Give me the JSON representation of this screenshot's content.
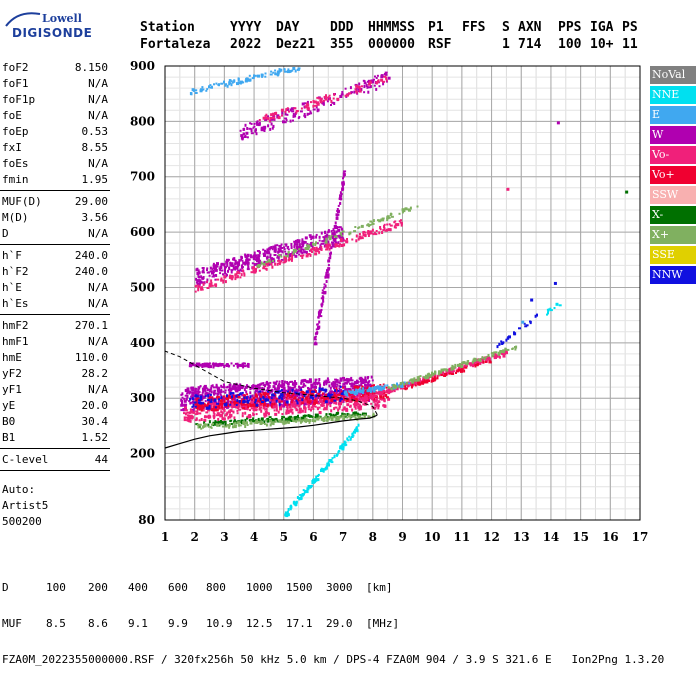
{
  "header": {
    "logo_top": "Lowell",
    "logo_bottom": "DIGISONDE",
    "line1": [
      "Station",
      "YYYY",
      "DAY",
      "DDD",
      "HHMMSS",
      "P1",
      "FFS",
      "S",
      "AXN",
      "PPS",
      "IGA",
      "PS"
    ],
    "line2": [
      "Fortaleza",
      "2022",
      "Dez21",
      "355",
      "000000",
      "RSF",
      "1",
      "714",
      "100",
      "10+",
      "11"
    ]
  },
  "params_groups": [
    [
      [
        "foF2",
        "8.150"
      ],
      [
        "foF1",
        "N/A"
      ],
      [
        "foF1p",
        "N/A"
      ],
      [
        "foE",
        "N/A"
      ],
      [
        "foEp",
        "0.53"
      ],
      [
        "fxI",
        "8.55"
      ],
      [
        "foEs",
        "N/A"
      ],
      [
        "fmin",
        "1.95"
      ]
    ],
    [
      [
        "MUF(D)",
        "29.00"
      ],
      [
        "M(D)",
        "3.56"
      ],
      [
        "D",
        "N/A"
      ]
    ],
    [
      [
        "h`F",
        "240.0"
      ],
      [
        "h`F2",
        "240.0"
      ],
      [
        "h`E",
        "N/A"
      ],
      [
        "h`Es",
        "N/A"
      ]
    ],
    [
      [
        "hmF2",
        "270.1"
      ],
      [
        "hmF1",
        "N/A"
      ],
      [
        "hmE",
        "110.0"
      ],
      [
        "yF2",
        "28.2"
      ],
      [
        "yF1",
        "N/A"
      ],
      [
        "yE",
        "20.0"
      ],
      [
        "B0",
        "30.4"
      ],
      [
        "B1",
        "1.52"
      ]
    ],
    [
      [
        "C-level",
        "44"
      ]
    ]
  ],
  "autoscaling": [
    "Auto:",
    "Artist5",
    "500200"
  ],
  "legend": [
    {
      "label": "NoVal",
      "color": "#808080"
    },
    {
      "label": "NNE",
      "color": "#00e0f0"
    },
    {
      "label": "E",
      "color": "#40a8f0"
    },
    {
      "label": "W",
      "color": "#b000b0"
    },
    {
      "label": "Vo-",
      "color": "#f0207a"
    },
    {
      "label": "Vo+",
      "color": "#f00030"
    },
    {
      "label": "SSW",
      "color": "#f8b0b0"
    },
    {
      "label": "X-",
      "color": "#007000"
    },
    {
      "label": "X+",
      "color": "#80b060"
    },
    {
      "label": "SSE",
      "color": "#e0d000"
    },
    {
      "label": "NNW",
      "color": "#1010e0"
    }
  ],
  "chart_data": {
    "type": "scatter",
    "xlabel": "",
    "ylabel": "",
    "xlim": [
      1,
      17
    ],
    "ylim": [
      80,
      900
    ],
    "x_ticks": [
      1,
      2,
      3,
      4,
      5,
      6,
      7,
      8,
      9,
      10,
      11,
      12,
      13,
      14,
      15,
      16,
      17
    ],
    "y_ticks": [
      80,
      200,
      300,
      400,
      500,
      600,
      700,
      800,
      900
    ],
    "grid": true,
    "x_minor_step": 0.5,
    "y_minor_step": 20,
    "profile": {
      "x": [
        1.0,
        1.5,
        2.0,
        2.5,
        3.0,
        3.5,
        4.0,
        4.5,
        5.0,
        5.5,
        6.0,
        6.5,
        7.0,
        7.5,
        7.9,
        8.0,
        8.1,
        8.15
      ],
      "y": [
        210,
        218,
        226,
        232,
        236,
        240,
        242,
        244,
        246,
        248,
        251,
        255,
        259,
        262,
        264,
        266,
        268,
        270
      ]
    },
    "profile_upper": {
      "x": [
        8.15,
        8.0,
        7.5,
        7.0,
        6.0,
        5.0,
        4.0,
        3.0,
        2.5,
        2.0,
        1.5,
        1.0
      ],
      "y": [
        270,
        285,
        295,
        300,
        305,
        310,
        318,
        330,
        345,
        360,
        375,
        385
      ]
    },
    "traces": [
      {
        "dir": "W",
        "x": [
          1.5,
          8.0
        ],
        "y": [
          300,
          320
        ],
        "spread": 45,
        "n": 900
      },
      {
        "dir": "Vo-",
        "x": [
          1.6,
          8.5
        ],
        "y": [
          275,
          300
        ],
        "spread": 30,
        "n": 500
      },
      {
        "dir": "Vo+",
        "x": [
          2.0,
          8.5
        ],
        "y": [
          290,
          315
        ],
        "spread": 25,
        "n": 300
      },
      {
        "dir": "X-",
        "x": [
          2.0,
          7.8
        ],
        "y": [
          255,
          275
        ],
        "spread": 8,
        "n": 150
      },
      {
        "dir": "X+",
        "x": [
          2.0,
          8.0
        ],
        "y": [
          250,
          270
        ],
        "spread": 8,
        "n": 150
      },
      {
        "dir": "NNW",
        "x": [
          1.8,
          7.0
        ],
        "y": [
          295,
          310
        ],
        "spread": 25,
        "n": 120
      },
      {
        "dir": "W",
        "x": [
          1.8,
          3.8
        ],
        "y": [
          362,
          362
        ],
        "spread": 6,
        "n": 90
      },
      {
        "dir": "Vo-",
        "x": [
          7.6,
          12.5
        ],
        "y": [
          300,
          385
        ],
        "spread": 8,
        "n": 220
      },
      {
        "dir": "E",
        "x": [
          7.0,
          9.2
        ],
        "y": [
          310,
          330
        ],
        "spread": 8,
        "n": 80
      },
      {
        "dir": "X+",
        "x": [
          8.5,
          12.8
        ],
        "y": [
          320,
          395
        ],
        "spread": 6,
        "n": 120
      },
      {
        "dir": "Vo+",
        "x": [
          9.0,
          12.0
        ],
        "y": [
          320,
          370
        ],
        "spread": 5,
        "n": 60
      },
      {
        "dir": "NNW",
        "x": [
          12.0,
          13.5
        ],
        "y": [
          390,
          450
        ],
        "spread": 6,
        "n": 25
      },
      {
        "dir": "W",
        "x": [
          2.0,
          7.0
        ],
        "y": [
          520,
          600
        ],
        "spread": 30,
        "n": 400
      },
      {
        "dir": "Vo-",
        "x": [
          2.0,
          9.0
        ],
        "y": [
          500,
          620
        ],
        "spread": 12,
        "n": 200
      },
      {
        "dir": "X+",
        "x": [
          4.0,
          9.5
        ],
        "y": [
          540,
          650
        ],
        "spread": 8,
        "n": 90
      },
      {
        "dir": "W",
        "x": [
          3.5,
          8.5
        ],
        "y": [
          780,
          880
        ],
        "spread": 25,
        "n": 160
      },
      {
        "dir": "Vo-",
        "x": [
          4.0,
          8.5
        ],
        "y": [
          800,
          880
        ],
        "spread": 15,
        "n": 80
      },
      {
        "dir": "E",
        "x": [
          1.8,
          5.5
        ],
        "y": [
          855,
          900
        ],
        "spread": 10,
        "n": 90
      },
      {
        "dir": "NNE",
        "x": [
          5.0,
          7.5
        ],
        "y": [
          90,
          250
        ],
        "spread": 10,
        "n": 120
      },
      {
        "dir": "W",
        "x": [
          6.0,
          7.0
        ],
        "y": [
          400,
          700
        ],
        "spread": 25,
        "n": 120
      },
      {
        "dir": "NNE",
        "x": [
          13.8,
          14.4
        ],
        "y": [
          455,
          480
        ],
        "spread": 10,
        "n": 10
      }
    ],
    "points": [
      {
        "dir": "NNW",
        "x": 13.3,
        "y": 480
      },
      {
        "dir": "NNW",
        "x": 14.1,
        "y": 510
      },
      {
        "dir": "X-",
        "x": 16.5,
        "y": 675
      },
      {
        "dir": "W",
        "x": 14.2,
        "y": 800
      },
      {
        "dir": "Vo-",
        "x": 12.5,
        "y": 680
      },
      {
        "dir": "E",
        "x": 13.0,
        "y": 440
      }
    ]
  },
  "bottom": {
    "d_label": "D",
    "d_values": [
      "100",
      "200",
      "400",
      "600",
      "800",
      "1000",
      "1500",
      "3000",
      "[km]"
    ],
    "muf_label": "MUF",
    "muf_values": [
      "8.5",
      "8.6",
      "9.1",
      "9.9",
      "10.9",
      "12.5",
      "17.1",
      "29.0",
      "[MHz]"
    ],
    "footer": "FZA0M_2022355000000.RSF / 320fx256h 50 kHz 5.0 km / DPS-4 FZA0M 904 / 3.9 S 321.6 E   Ion2Png 1.3.20"
  }
}
